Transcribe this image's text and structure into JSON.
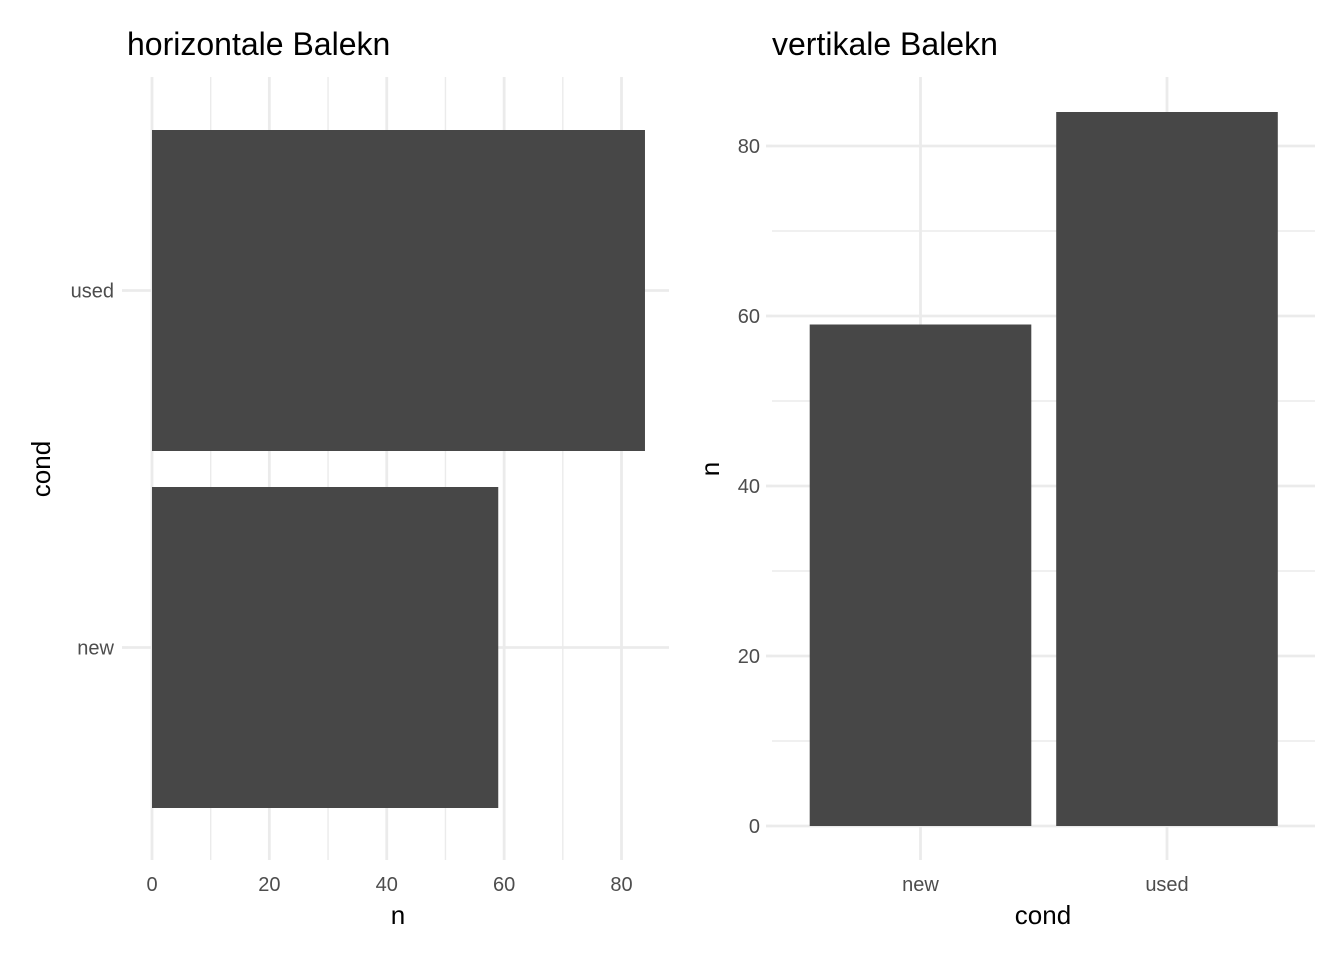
{
  "colors": {
    "bar": "#474747",
    "grid": "#ebebeb",
    "tick_text": "#4d4d4d",
    "background": "#ffffff"
  },
  "chart_data": [
    {
      "type": "bar",
      "orientation": "horizontal",
      "title": "horizontale Balekn",
      "xlabel": "n",
      "ylabel": "cond",
      "categories": [
        "new",
        "used"
      ],
      "values": [
        59,
        84
      ],
      "xlim": [
        0,
        88
      ],
      "x_ticks": [
        0,
        20,
        40,
        60,
        80
      ],
      "grid": true,
      "legend": "none"
    },
    {
      "type": "bar",
      "orientation": "vertical",
      "title": "vertikale Balekn",
      "xlabel": "cond",
      "ylabel": "n",
      "categories": [
        "new",
        "used"
      ],
      "values": [
        59,
        84
      ],
      "ylim": [
        0,
        88
      ],
      "y_ticks": [
        0,
        20,
        40,
        60,
        80
      ],
      "grid": true,
      "legend": "none"
    }
  ]
}
